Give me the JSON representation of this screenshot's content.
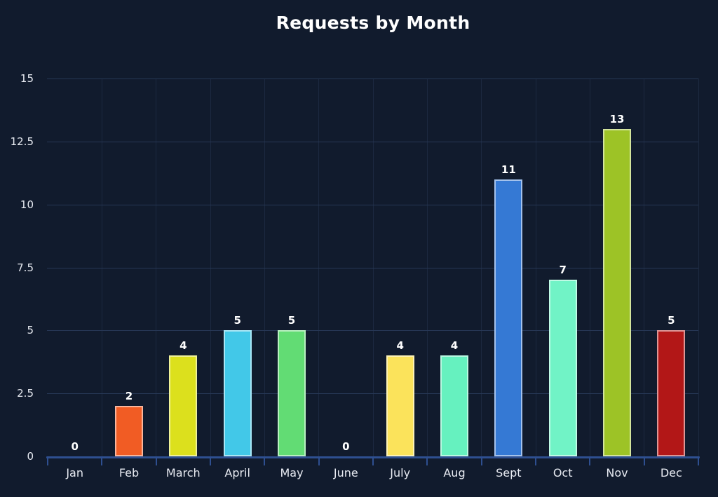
{
  "chart_data": {
    "type": "bar",
    "title": "Requests by Month",
    "categories": [
      "Jan",
      "Feb",
      "March",
      "April",
      "May",
      "June",
      "July",
      "Aug",
      "Sept",
      "Oct",
      "Nov",
      "Dec"
    ],
    "values": [
      0,
      2,
      4,
      5,
      5,
      0,
      4,
      4,
      11,
      7,
      13,
      5
    ],
    "bar_colors": [
      null,
      "#f15c24",
      "#dce01d",
      "#42c8e8",
      "#62dc74",
      null,
      "#fbe35b",
      "#66f1bf",
      "#3579d4",
      "#71f3c6",
      "#9dc326",
      "#b21717"
    ],
    "value_labels_shown": true,
    "xlabel": "",
    "ylabel": "",
    "ylim": [
      0,
      15
    ],
    "yticks": [
      0,
      2.5,
      5,
      7.5,
      10,
      12.5,
      15
    ],
    "ytick_labels": [
      "0",
      "2.5",
      "5",
      "7.5",
      "10",
      "12.5",
      "15"
    ],
    "grid": true,
    "legend": "none"
  },
  "theme": {
    "background": "#111b2d",
    "title_color": "#ffffff",
    "axis_line_color": "#2e4f90",
    "grid_color_horizontal": "#263755",
    "grid_color_vertical": "#1c2940",
    "tick_label_color": "#e8ebf2",
    "value_label_color": "#ffffff"
  }
}
